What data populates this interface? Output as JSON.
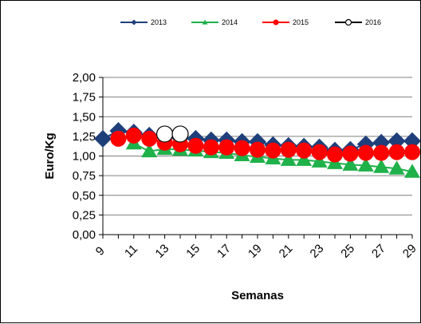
{
  "chart_data": {
    "type": "line",
    "title": "",
    "xlabel": "Semanas",
    "ylabel": "Euro/Kg",
    "ylim": [
      0,
      2
    ],
    "xlim": [
      9,
      29
    ],
    "y_ticks": [
      "0,00",
      "0,25",
      "0,50",
      "0,75",
      "1,00",
      "1,25",
      "1,50",
      "1,75",
      "2,00"
    ],
    "x_ticks": [
      "9",
      "11",
      "13",
      "15",
      "17",
      "19",
      "21",
      "23",
      "25",
      "27",
      "29"
    ],
    "grid": true,
    "legend_position": "top",
    "series": [
      {
        "name": "2013",
        "color": "#1f3f7a",
        "marker": "diamond",
        "x": [
          9,
          10,
          11,
          12,
          13,
          14,
          15,
          16,
          17,
          18,
          19,
          20,
          21,
          22,
          23,
          24,
          25,
          26,
          27,
          28,
          29
        ],
        "y": [
          1.22,
          1.32,
          1.3,
          1.26,
          1.24,
          1.23,
          1.22,
          1.2,
          1.2,
          1.18,
          1.18,
          1.14,
          1.13,
          1.12,
          1.11,
          1.07,
          1.08,
          1.15,
          1.17,
          1.19,
          1.19
        ]
      },
      {
        "name": "2014",
        "color": "#1fb14a",
        "marker": "triangle",
        "x": [
          11,
          12,
          13,
          14,
          15,
          16,
          17,
          18,
          19,
          20,
          21,
          22,
          23,
          24,
          25,
          26,
          27,
          28,
          29
        ],
        "y": [
          1.16,
          1.06,
          1.09,
          1.08,
          1.07,
          1.05,
          1.04,
          1.01,
          0.99,
          0.97,
          0.95,
          0.95,
          0.93,
          0.91,
          0.89,
          0.88,
          0.86,
          0.84,
          0.8
        ]
      },
      {
        "name": "2015",
        "color": "#ff0000",
        "marker": "circle",
        "x": [
          10,
          11,
          12,
          13,
          14,
          15,
          16,
          17,
          18,
          19,
          20,
          21,
          22,
          23,
          24,
          25,
          26,
          27,
          28,
          29
        ],
        "y": [
          1.22,
          1.26,
          1.22,
          1.17,
          1.15,
          1.13,
          1.11,
          1.11,
          1.1,
          1.08,
          1.07,
          1.08,
          1.07,
          1.05,
          1.02,
          1.03,
          1.04,
          1.04,
          1.05,
          1.05
        ]
      },
      {
        "name": "2016",
        "color": "#000000",
        "marker": "open-circle",
        "x": [
          13,
          14
        ],
        "y": [
          1.28,
          1.28
        ]
      }
    ]
  }
}
